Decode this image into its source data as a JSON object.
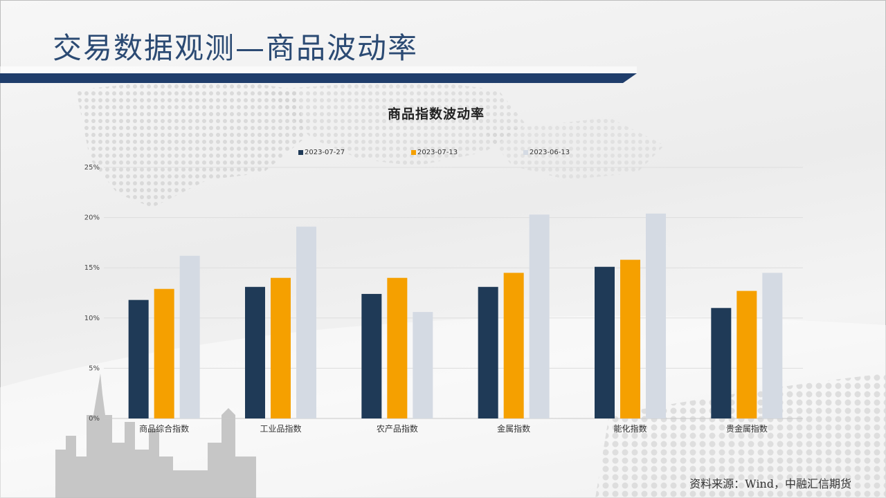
{
  "page": {
    "title": "交易数据观测—商品波动率",
    "source": "资料来源：Wind，中融汇信期货"
  },
  "colors": {
    "title_text": "#2b4a73",
    "title_bar": "#1f3d6b",
    "series_1": "#1f3a57",
    "series_2": "#f5a000",
    "series_3": "#d4dae3"
  },
  "chart_data": {
    "type": "bar",
    "title": "商品指数波动率",
    "categories": [
      "商品综合指数",
      "工业品指数",
      "农产品指数",
      "金属指数",
      "能化指数",
      "贵金属指数"
    ],
    "series": [
      {
        "name": "2023-07-27",
        "values": [
          11.8,
          13.1,
          12.4,
          13.1,
          15.1,
          11.0
        ]
      },
      {
        "name": "2023-07-13",
        "values": [
          12.9,
          14.0,
          14.0,
          14.5,
          15.8,
          12.7
        ]
      },
      {
        "name": "2023-06-13",
        "values": [
          16.2,
          19.1,
          10.6,
          20.3,
          20.4,
          14.5
        ]
      }
    ],
    "ylim": [
      0,
      25
    ],
    "yticks": [
      "0%",
      "5%",
      "10%",
      "15%",
      "20%",
      "25%"
    ],
    "grid": true,
    "legend_position": "top"
  }
}
